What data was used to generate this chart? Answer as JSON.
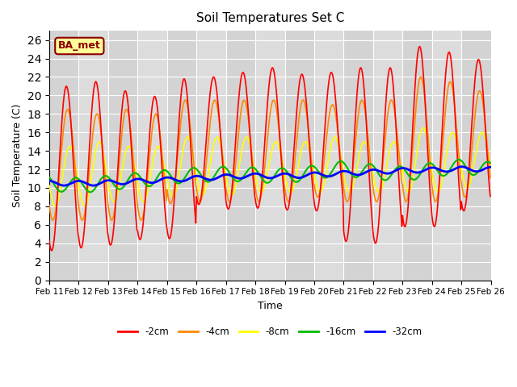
{
  "title": "Soil Temperatures Set C",
  "xlabel": "Time",
  "ylabel": "Soil Temperature (C)",
  "ylim": [
    0,
    27
  ],
  "yticks": [
    0,
    2,
    4,
    6,
    8,
    10,
    12,
    14,
    16,
    18,
    20,
    22,
    24,
    26
  ],
  "xtick_labels": [
    "Feb 11",
    "Feb 12",
    "Feb 13",
    "Feb 14",
    "Feb 15",
    "Feb 16",
    "Feb 17",
    "Feb 18",
    "Feb 19",
    "Feb 20",
    "Feb 21",
    "Feb 22",
    "Feb 23",
    "Feb 24",
    "Feb 25",
    "Feb 26"
  ],
  "legend_labels": [
    "-2cm",
    "-4cm",
    "-8cm",
    "-16cm",
    "-32cm"
  ],
  "legend_colors": [
    "#ff0000",
    "#ff8800",
    "#ffff00",
    "#00bb00",
    "#0000ff"
  ],
  "line_widths": [
    1.2,
    1.2,
    1.2,
    1.5,
    2.0
  ],
  "watermark_text": "BA_met",
  "watermark_color": "#8B0000",
  "watermark_bg": "#FFFF99",
  "plot_bg_color": "#dcdcdc",
  "n_days": 15,
  "n_pts_per_day": 48,
  "depth_2cm": {
    "peaks": [
      21.0,
      21.5,
      20.5,
      19.9,
      21.8,
      22.0,
      22.5,
      23.0,
      22.3,
      22.5,
      23.0,
      23.0,
      25.3,
      24.7,
      23.9
    ],
    "troughs": [
      3.2,
      3.5,
      3.8,
      4.4,
      4.5,
      8.2,
      7.7,
      7.8,
      7.6,
      7.5,
      4.2,
      4.0,
      5.8,
      5.8,
      7.5
    ],
    "peak_phase": 0.58,
    "trough_phase": 0.18,
    "sharpness": 3.5
  },
  "depth_4cm": {
    "peaks": [
      18.5,
      18.0,
      18.5,
      18.0,
      19.5,
      19.5,
      19.5,
      19.5,
      19.5,
      19.0,
      19.5,
      19.5,
      22.0,
      21.5,
      20.5
    ],
    "troughs": [
      6.5,
      6.5,
      6.5,
      6.5,
      8.3,
      8.5,
      8.5,
      8.5,
      8.5,
      9.0,
      8.5,
      8.5,
      8.5,
      8.5,
      9.0
    ],
    "peak_phase": 0.62,
    "trough_phase": 0.22,
    "sharpness": 3.0
  },
  "depth_8cm": {
    "peaks": [
      14.5,
      15.0,
      14.5,
      14.5,
      15.5,
      15.5,
      15.5,
      15.0,
      15.0,
      15.5,
      15.0,
      15.0,
      16.5,
      16.0,
      16.0
    ],
    "troughs": [
      8.0,
      8.0,
      8.5,
      8.5,
      9.0,
      9.2,
      9.2,
      9.5,
      9.5,
      9.5,
      9.5,
      9.5,
      9.5,
      9.5,
      10.0
    ],
    "peak_phase": 0.7,
    "trough_phase": 0.28,
    "sharpness": 2.0
  },
  "depth_16cm_vals": [
    10.5,
    10.4,
    10.3,
    10.3,
    10.3,
    10.4,
    10.5,
    10.6,
    10.7,
    10.8,
    10.9,
    11.0,
    11.1,
    11.2,
    11.3,
    11.35,
    11.4,
    11.45,
    11.5,
    11.5,
    11.5,
    11.45,
    11.4,
    11.35,
    11.3,
    11.35,
    11.4,
    11.5,
    11.6,
    11.8,
    12.0,
    12.1,
    12.0,
    11.9,
    11.8,
    11.7,
    11.6,
    11.5,
    11.6,
    11.7,
    11.8,
    12.0,
    12.1,
    12.2,
    12.3,
    12.2,
    12.1,
    12.0
  ],
  "depth_32cm_vals": [
    10.5,
    10.5,
    10.5,
    10.5,
    10.5,
    10.5,
    10.55,
    10.6,
    10.65,
    10.7,
    10.75,
    10.8,
    10.85,
    10.9,
    10.95,
    11.0,
    11.05,
    11.1,
    11.15,
    11.2,
    11.25,
    11.3,
    11.3,
    11.3,
    11.3,
    11.3,
    11.3,
    11.35,
    11.4,
    11.45,
    11.5,
    11.55,
    11.6,
    11.65,
    11.7,
    11.75,
    11.8,
    11.85,
    11.9,
    11.9,
    11.9,
    11.95,
    12.0,
    12.0,
    12.05,
    12.05,
    12.0,
    12.0
  ]
}
